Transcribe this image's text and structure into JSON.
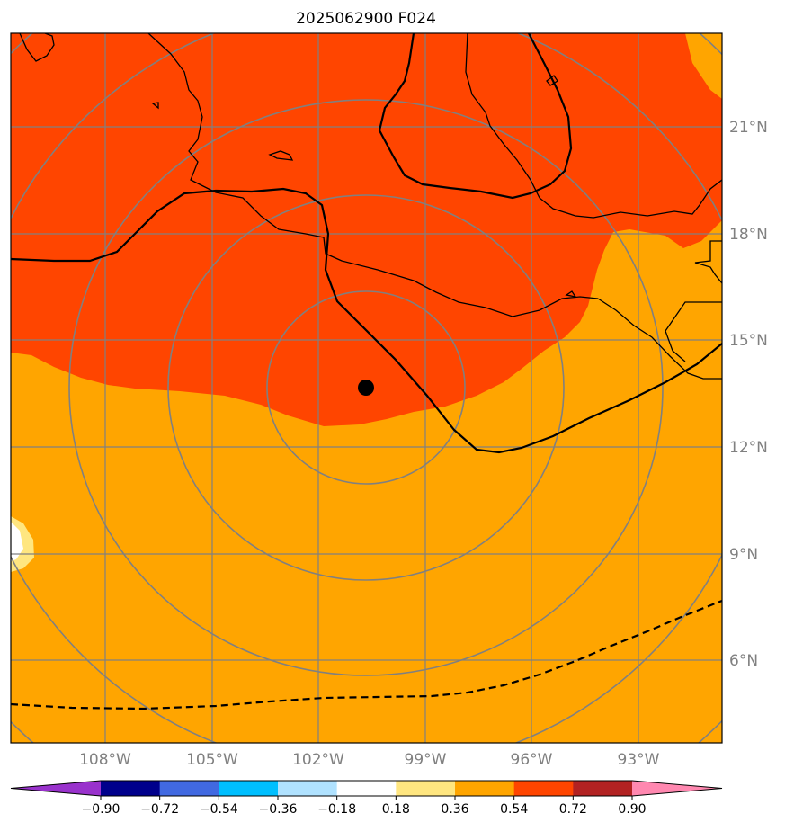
{
  "title": "2025062900 F024",
  "lon_labels": [
    "108°W",
    "105°W",
    "102°W",
    "99°W",
    "96°W",
    "93°W"
  ],
  "lat_labels": [
    "21°N",
    "18°N",
    "15°N",
    "12°N",
    "9°N",
    "6°N"
  ],
  "colorbar": {
    "ticks": [
      "−0.90",
      "−0.72",
      "−0.54",
      "−0.36",
      "−0.18",
      "0.18",
      "0.36",
      "0.54",
      "0.72",
      "0.90"
    ],
    "colors": [
      "#9932cc",
      "#00008b",
      "#4169e1",
      "#00bfff",
      "#b0e2ff",
      "#ffffff",
      "#ffe680",
      "#ffa500",
      "#ff4500",
      "#b22222",
      "#ff88b0"
    ]
  },
  "colors": {
    "field_low": "#ffa500",
    "field_high": "#ff4500",
    "field_weak": "#ffe680",
    "grid": "#808080"
  },
  "storm_marker": "filled-circle"
}
